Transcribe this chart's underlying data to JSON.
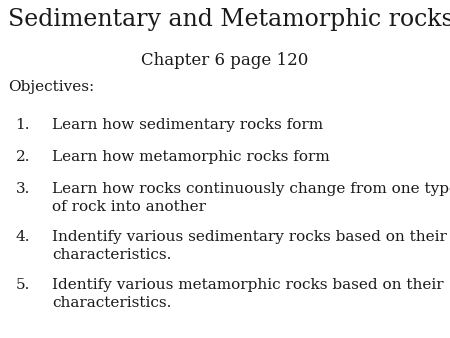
{
  "title": "Sedimentary and Metamorphic rocks",
  "subtitle": "Chapter 6 page 120",
  "objectives_label": "Objectives:",
  "items": [
    "Learn how sedimentary rocks form",
    "Learn how metamorphic rocks form",
    "Learn how rocks continuously change from one type\nof rock into another",
    "Indentify various sedimentary rocks based on their\ncharacteristics.",
    "Identify various metamorphic rocks based on their\ncharacteristics."
  ],
  "background_color": "#ffffff",
  "text_color": "#1a1a1a",
  "title_fontsize": 17,
  "subtitle_fontsize": 12,
  "objectives_fontsize": 11,
  "items_fontsize": 11
}
